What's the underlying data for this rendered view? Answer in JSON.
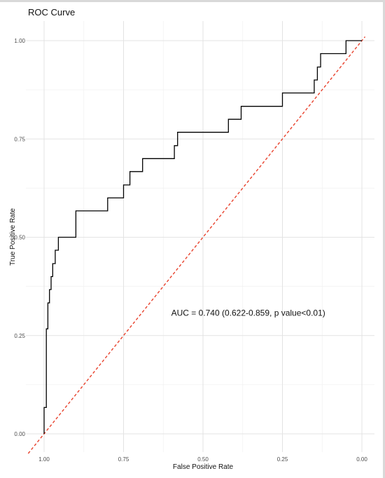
{
  "chart_data": {
    "type": "line",
    "title": "ROC Curve",
    "xlabel": "False Positive Rate",
    "ylabel": "True Positive Rate",
    "x_reversed": true,
    "xlim": [
      1.0,
      0.0
    ],
    "ylim": [
      0.0,
      1.0
    ],
    "x_ticks": [
      "1.00",
      "0.75",
      "0.50",
      "0.25",
      "0.00"
    ],
    "x_tick_values": [
      1.0,
      0.75,
      0.5,
      0.25,
      0.0
    ],
    "y_ticks": [
      "0.00",
      "0.25",
      "0.50",
      "0.75",
      "1.00"
    ],
    "y_tick_values": [
      0.0,
      0.25,
      0.5,
      0.75,
      1.0
    ],
    "grid": true,
    "series": [
      {
        "color": "#000000",
        "style": "step",
        "x": [
          1.0,
          1.0,
          0.993,
          0.993,
          0.988,
          0.988,
          0.983,
          0.983,
          0.978,
          0.978,
          0.973,
          0.973,
          0.965,
          0.965,
          0.955,
          0.955,
          0.945,
          0.945,
          0.9,
          0.9,
          0.8,
          0.8,
          0.77,
          0.77,
          0.75,
          0.75,
          0.73,
          0.73,
          0.69,
          0.69,
          0.6,
          0.6,
          0.59,
          0.59,
          0.58,
          0.58,
          0.42,
          0.42,
          0.38,
          0.38,
          0.25,
          0.25,
          0.15,
          0.15,
          0.14,
          0.14,
          0.13,
          0.13,
          0.12,
          0.12,
          0.05,
          0.05,
          0.0
        ],
        "y": [
          0.0,
          0.067,
          0.067,
          0.267,
          0.267,
          0.333,
          0.333,
          0.367,
          0.367,
          0.4,
          0.4,
          0.433,
          0.433,
          0.467,
          0.467,
          0.5,
          0.5,
          0.5,
          0.5,
          0.567,
          0.567,
          0.6,
          0.6,
          0.6,
          0.6,
          0.633,
          0.633,
          0.667,
          0.667,
          0.7,
          0.7,
          0.7,
          0.7,
          0.733,
          0.733,
          0.767,
          0.767,
          0.8,
          0.8,
          0.833,
          0.833,
          0.867,
          0.867,
          0.9,
          0.9,
          0.933,
          0.933,
          0.967,
          0.967,
          0.967,
          0.967,
          1.0,
          1.0
        ]
      },
      {
        "color": "#e8412c",
        "style": "dashed",
        "x": [
          1.05,
          -0.01
        ],
        "y": [
          -0.05,
          1.01
        ]
      }
    ],
    "annotations": [
      {
        "text": "AUC = 0.740 (0.622-0.859, p value<0.01)",
        "x": 0.6,
        "y": 0.3
      }
    ]
  }
}
